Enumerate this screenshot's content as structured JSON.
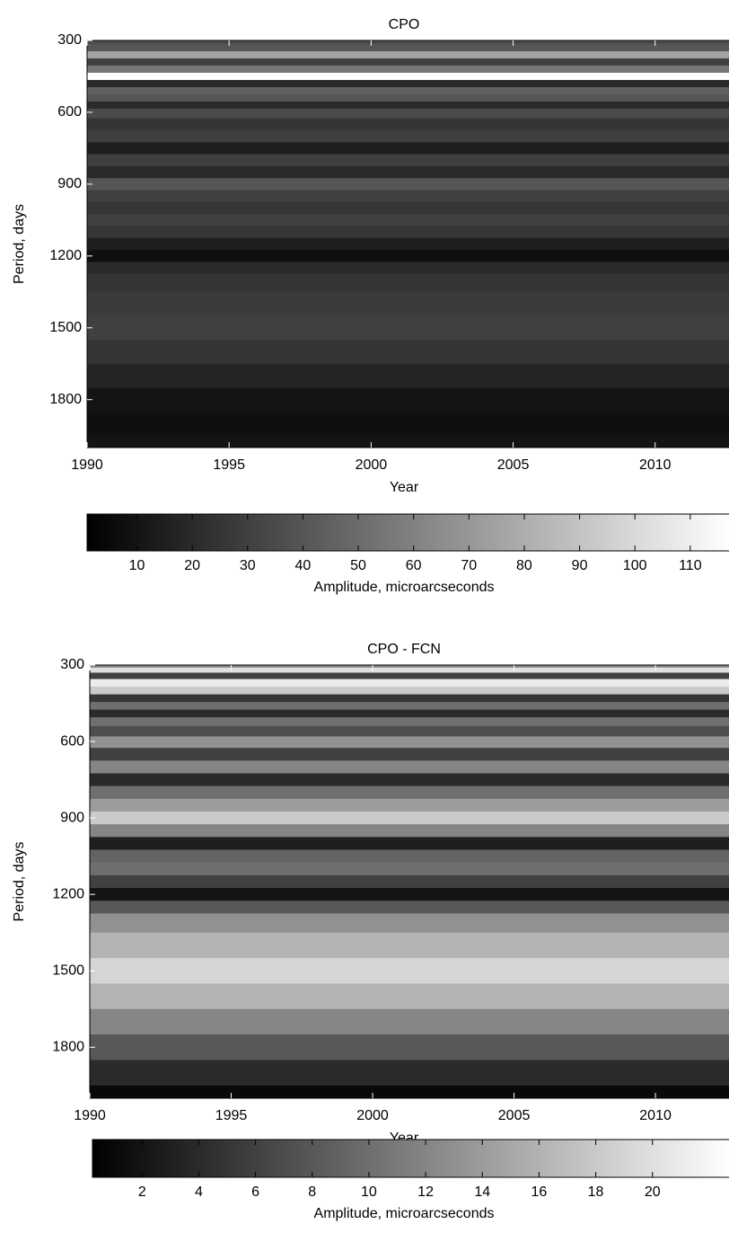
{
  "chart_data": [
    {
      "type": "heatmap",
      "title": "CPO",
      "xlabel": "Year",
      "ylabel": "Period, days",
      "xlim": [
        1990,
        2012.6
      ],
      "xticks": [
        1990,
        1995,
        2000,
        2005,
        2010
      ],
      "ylim": [
        300,
        2000
      ],
      "yticks": [
        300,
        600,
        900,
        1200,
        1500,
        1800
      ],
      "periods": [
        300,
        330,
        360,
        390,
        420,
        450,
        480,
        510,
        540,
        570,
        600,
        650,
        700,
        750,
        800,
        850,
        900,
        950,
        1000,
        1050,
        1100,
        1150,
        1200,
        1250,
        1300,
        1400,
        1500,
        1600,
        1700,
        1800,
        1900,
        2000
      ],
      "values": [
        35,
        40,
        75,
        30,
        55,
        117,
        20,
        45,
        40,
        20,
        35,
        25,
        30,
        15,
        30,
        20,
        40,
        30,
        25,
        30,
        25,
        15,
        8,
        20,
        25,
        28,
        30,
        25,
        18,
        10,
        8,
        10
      ],
      "clim": [
        1,
        117
      ],
      "cticks": [
        10,
        20,
        30,
        40,
        50,
        60,
        70,
        80,
        90,
        100,
        110
      ],
      "clabel": "Amplitude, microarcseconds",
      "colormap": "gray"
    },
    {
      "type": "heatmap",
      "title": "CPO - FCN",
      "xlabel": "Year",
      "ylabel": "Period, days",
      "xlim": [
        1990,
        2012.6
      ],
      "xticks": [
        1990,
        1995,
        2000,
        2005,
        2010
      ],
      "ylim": [
        300,
        2000
      ],
      "yticks": [
        300,
        600,
        900,
        1200,
        1500,
        1800
      ],
      "periods": [
        300,
        320,
        340,
        370,
        400,
        430,
        460,
        490,
        520,
        560,
        600,
        650,
        700,
        750,
        800,
        850,
        900,
        950,
        1000,
        1050,
        1100,
        1150,
        1200,
        1250,
        1300,
        1400,
        1500,
        1600,
        1700,
        1800,
        1900,
        2000
      ],
      "values": [
        12,
        20,
        6,
        21,
        18,
        5,
        10,
        4,
        10,
        7,
        13,
        6,
        12,
        4,
        10,
        14,
        18,
        12,
        3,
        9,
        10,
        6,
        2,
        8,
        13,
        16,
        19,
        16,
        12,
        8,
        4,
        1
      ],
      "clim": [
        0.25,
        22.7
      ],
      "cticks": [
        2,
        4,
        6,
        8,
        10,
        12,
        14,
        16,
        18,
        20
      ],
      "clabel": "Amplitude, microarcseconds",
      "colormap": "gray"
    }
  ]
}
